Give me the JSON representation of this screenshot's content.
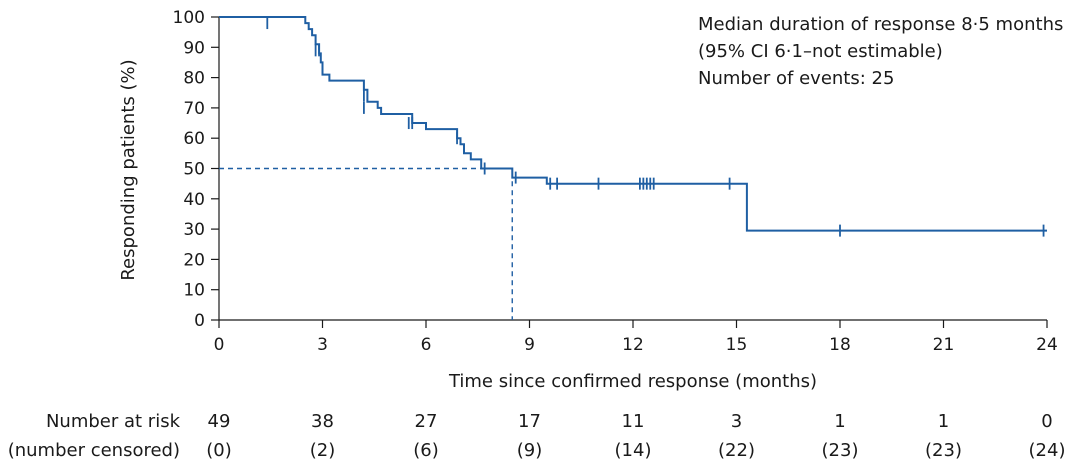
{
  "chart_data": {
    "type": "line",
    "subtype": "kaplan-meier",
    "title": "",
    "xlabel": "Time since confirmed response (months)",
    "ylabel": "Responding patients (%)",
    "xlim": [
      0,
      24
    ],
    "ylim": [
      0,
      100
    ],
    "xticks": [
      0,
      3,
      6,
      9,
      12,
      15,
      18,
      21,
      24
    ],
    "yticks": [
      0,
      10,
      20,
      30,
      40,
      50,
      60,
      70,
      80,
      90,
      100
    ],
    "grid": false,
    "color": "#1f5fa3",
    "annotations": [
      "Median duration of response 8·5 months",
      "(95% CI 6·1–not estimable)",
      "Number of events: 25"
    ],
    "median": {
      "x": 8.5,
      "y": 50
    },
    "curve": [
      [
        0,
        100
      ],
      [
        2.5,
        100
      ],
      [
        2.5,
        98
      ],
      [
        2.6,
        98
      ],
      [
        2.6,
        96
      ],
      [
        2.7,
        96
      ],
      [
        2.7,
        94
      ],
      [
        2.8,
        94
      ],
      [
        2.8,
        91
      ],
      [
        2.9,
        91
      ],
      [
        2.9,
        88
      ],
      [
        2.95,
        88
      ],
      [
        2.95,
        85
      ],
      [
        3.0,
        85
      ],
      [
        3.0,
        81
      ],
      [
        3.2,
        81
      ],
      [
        3.2,
        79
      ],
      [
        4.2,
        79
      ],
      [
        4.2,
        76
      ],
      [
        4.3,
        76
      ],
      [
        4.3,
        72
      ],
      [
        4.6,
        72
      ],
      [
        4.6,
        70
      ],
      [
        4.7,
        70
      ],
      [
        4.7,
        68
      ],
      [
        5.6,
        68
      ],
      [
        5.6,
        65
      ],
      [
        6.0,
        65
      ],
      [
        6.0,
        63
      ],
      [
        6.9,
        63
      ],
      [
        6.9,
        60
      ],
      [
        7.0,
        60
      ],
      [
        7.0,
        58
      ],
      [
        7.1,
        58
      ],
      [
        7.1,
        55
      ],
      [
        7.3,
        55
      ],
      [
        7.3,
        53
      ],
      [
        7.6,
        53
      ],
      [
        7.6,
        50
      ],
      [
        8.5,
        50
      ],
      [
        8.5,
        47
      ],
      [
        9.5,
        47
      ],
      [
        9.5,
        45
      ],
      [
        15.3,
        45
      ],
      [
        15.3,
        29.5
      ],
      [
        24,
        29.5
      ]
    ],
    "censored": [
      [
        1.4,
        98
      ],
      [
        2.8,
        89
      ],
      [
        2.9,
        89
      ],
      [
        4.2,
        74
      ],
      [
        4.2,
        70
      ],
      [
        5.5,
        65
      ],
      [
        5.6,
        65
      ],
      [
        6.9,
        60
      ],
      [
        7.7,
        50
      ],
      [
        8.6,
        47
      ],
      [
        9.6,
        45
      ],
      [
        9.8,
        45
      ],
      [
        11.0,
        45
      ],
      [
        12.2,
        45
      ],
      [
        12.3,
        45
      ],
      [
        12.4,
        45
      ],
      [
        12.5,
        45
      ],
      [
        12.6,
        45
      ],
      [
        14.8,
        45
      ],
      [
        18.0,
        29.5
      ],
      [
        23.9,
        29.5
      ]
    ]
  },
  "risk_table": {
    "label": "Number at risk",
    "censored_label": "(number censored)",
    "times": [
      0,
      3,
      6,
      9,
      12,
      15,
      18,
      21,
      24
    ],
    "at_risk": [
      "49",
      "38",
      "27",
      "17",
      "11",
      "3",
      "1",
      "1",
      "0"
    ],
    "censored": [
      "(0)",
      "(2)",
      "(6)",
      "(9)",
      "(14)",
      "(22)",
      "(23)",
      "(23)",
      "(24)"
    ]
  }
}
